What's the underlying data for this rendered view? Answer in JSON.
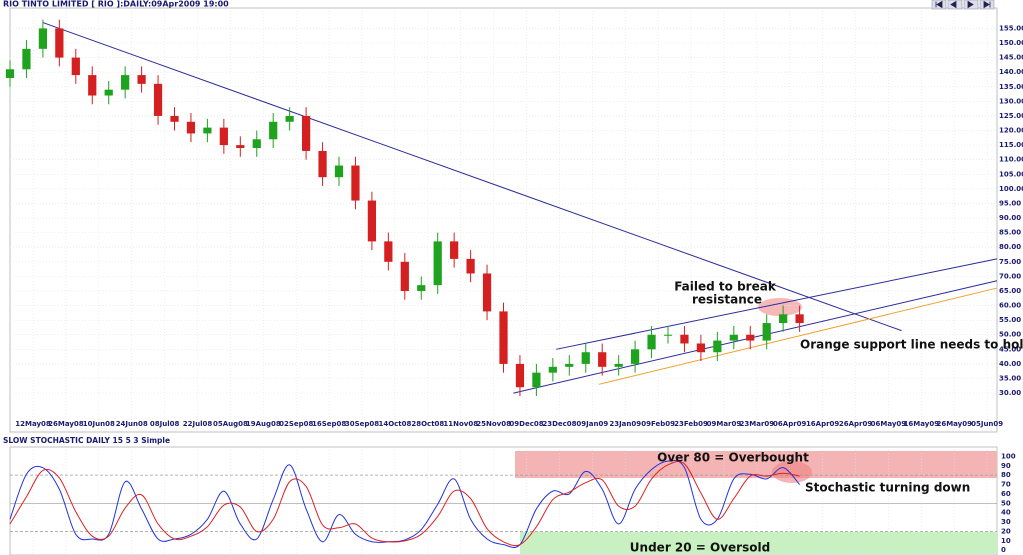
{
  "chart_data": [
    {
      "type": "candlestick",
      "title": "RIO TINTO LIMITED [ RIO ]:DAILY:09Apr2009 19:00",
      "x": [
        0,
        5,
        10,
        15,
        20,
        25,
        30,
        35,
        40,
        45,
        50,
        55,
        60,
        65,
        70,
        75,
        80,
        85,
        90,
        95,
        100,
        105,
        110,
        115,
        120,
        125,
        130,
        135,
        140,
        145,
        150,
        155,
        160,
        165,
        170,
        175,
        180,
        185,
        190,
        195,
        200,
        205,
        210,
        215,
        220,
        225,
        230,
        235,
        240
      ],
      "open": [
        138,
        141,
        148,
        155,
        145,
        139,
        132,
        134,
        139,
        136,
        125,
        123,
        119,
        121,
        115,
        114,
        117,
        123,
        125,
        113,
        104,
        108,
        96,
        82,
        75,
        65,
        67,
        82,
        76,
        71,
        58,
        40,
        32,
        37,
        39,
        40,
        44,
        39,
        40,
        45,
        50,
        50,
        47,
        44,
        48,
        50,
        48,
        54,
        57
      ],
      "high": [
        144,
        151,
        158,
        158,
        148,
        142,
        137,
        142,
        142,
        139,
        128,
        126,
        124,
        124,
        118,
        120,
        126,
        128,
        128,
        116,
        111,
        111,
        99,
        85,
        78,
        70,
        85,
        85,
        79,
        74,
        61,
        43,
        40,
        42,
        43,
        47,
        47,
        43,
        48,
        53,
        53,
        53,
        50,
        51,
        53,
        53,
        57,
        60,
        60
      ],
      "low": [
        135,
        138,
        145,
        142,
        136,
        129,
        129,
        131,
        133,
        122,
        120,
        116,
        116,
        112,
        111,
        111,
        114,
        120,
        110,
        101,
        101,
        93,
        79,
        72,
        62,
        62,
        64,
        73,
        68,
        55,
        37,
        29,
        29,
        34,
        36,
        37,
        36,
        36,
        37,
        42,
        47,
        44,
        41,
        41,
        45,
        45,
        45,
        51,
        51
      ],
      "close": [
        141,
        148,
        155,
        145,
        139,
        132,
        134,
        139,
        136,
        125,
        123,
        119,
        121,
        115,
        114,
        117,
        123,
        125,
        113,
        104,
        108,
        96,
        82,
        75,
        65,
        67,
        82,
        76,
        71,
        58,
        40,
        32,
        37,
        39,
        40,
        44,
        39,
        40,
        45,
        50,
        50,
        47,
        44,
        48,
        50,
        48,
        54,
        57,
        54
      ],
      "up_color": "#1fa31f",
      "down_color": "#d42020",
      "xlim": [
        0,
        300
      ],
      "xticks": [
        {
          "value": 7,
          "label": "12May08"
        },
        {
          "value": 17,
          "label": "26May08"
        },
        {
          "value": 27,
          "label": "10Jun08"
        },
        {
          "value": 37,
          "label": "24Jun08"
        },
        {
          "value": 47,
          "label": "08Jul08"
        },
        {
          "value": 57,
          "label": "22Jul08"
        },
        {
          "value": 67,
          "label": "05Aug08"
        },
        {
          "value": 77,
          "label": "19Aug08"
        },
        {
          "value": 87,
          "label": "02Sep08"
        },
        {
          "value": 97,
          "label": "16Sep08"
        },
        {
          "value": 107,
          "label": "30Sep08"
        },
        {
          "value": 117,
          "label": "14Oct08"
        },
        {
          "value": 127,
          "label": "28Oct08"
        },
        {
          "value": 137,
          "label": "11Nov08"
        },
        {
          "value": 147,
          "label": "25Nov08"
        },
        {
          "value": 157,
          "label": "09Dec08"
        },
        {
          "value": 167,
          "label": "23Dec08"
        },
        {
          "value": 177,
          "label": "09Jan09"
        },
        {
          "value": 187,
          "label": "23Jan09"
        },
        {
          "value": 197,
          "label": "09Feb09"
        },
        {
          "value": 207,
          "label": "23Feb09"
        },
        {
          "value": 217,
          "label": "09Mar09"
        },
        {
          "value": 227,
          "label": "23Mar09"
        },
        {
          "value": 237,
          "label": "06Apr09"
        },
        {
          "value": 247,
          "label": "16Apr09"
        },
        {
          "value": 257,
          "label": "26Apr09"
        },
        {
          "value": 267,
          "label": "06May09"
        },
        {
          "value": 277,
          "label": "16May09"
        },
        {
          "value": 287,
          "label": "26May09"
        },
        {
          "value": 297,
          "label": "05Jun09"
        }
      ],
      "ylim": [
        17,
        162
      ],
      "yticks": [
        {
          "value": 30,
          "label": "30.00"
        },
        {
          "value": 35,
          "label": "35.00"
        },
        {
          "value": 40,
          "label": "40.00"
        },
        {
          "value": 45,
          "label": "45.00"
        },
        {
          "value": 50,
          "label": "50.00"
        },
        {
          "value": 55,
          "label": "55.00"
        },
        {
          "value": 60,
          "label": "60.00"
        },
        {
          "value": 65,
          "label": "65.00"
        },
        {
          "value": 70,
          "label": "70.00"
        },
        {
          "value": 75,
          "label": "75.00"
        },
        {
          "value": 80,
          "label": "80.00"
        },
        {
          "value": 85,
          "label": "85.00"
        },
        {
          "value": 90,
          "label": "90.00"
        },
        {
          "value": 95,
          "label": "95.00"
        },
        {
          "value": 100,
          "label": "100.00"
        },
        {
          "value": 105,
          "label": "105.00"
        },
        {
          "value": 110,
          "label": "110.00"
        },
        {
          "value": 115,
          "label": "115.00"
        },
        {
          "value": 120,
          "label": "120.00"
        },
        {
          "value": 125,
          "label": "125.00"
        },
        {
          "value": 130,
          "label": "130.00"
        },
        {
          "value": 135,
          "label": "135.00"
        },
        {
          "value": 140,
          "label": "140.00"
        },
        {
          "value": 145,
          "label": "145.00"
        },
        {
          "value": 150,
          "label": "150.00"
        },
        {
          "value": 155,
          "label": "155.00"
        }
      ],
      "grid": true,
      "trendlines": [
        {
          "x": [
            10,
            271
          ],
          "y": [
            157,
            51.4
          ],
          "color": "#2a2a9a"
        },
        {
          "x": [
            166,
            300
          ],
          "y": [
            45,
            76
          ],
          "color": "#2a2a9a"
        },
        {
          "x": [
            153,
            300
          ],
          "y": [
            30,
            68.5
          ],
          "color": "#2a2a9a"
        },
        {
          "x": [
            179,
            300
          ],
          "y": [
            33,
            66
          ],
          "color": "#f0a030"
        }
      ],
      "annotations": [
        "Failed to break",
        "resistance",
        "Orange support line needs to hold"
      ]
    },
    {
      "type": "line",
      "title": "SLOW STOCHASTIC DAILY 15 5 3 Simple",
      "x": [
        0,
        5,
        10,
        15,
        20,
        25,
        30,
        35,
        40,
        45,
        50,
        55,
        60,
        65,
        70,
        75,
        80,
        85,
        90,
        95,
        100,
        105,
        110,
        115,
        120,
        125,
        130,
        135,
        140,
        145,
        150,
        155,
        160,
        165,
        170,
        175,
        180,
        185,
        190,
        195,
        200,
        205,
        210,
        215,
        220,
        225,
        230,
        235,
        240
      ],
      "series": [
        {
          "color": "#2233dd",
          "values": [
            33,
            81,
            88,
            65,
            17,
            12,
            17,
            73,
            44,
            12,
            12,
            17,
            33,
            63,
            28,
            12,
            54,
            91,
            44,
            9,
            38,
            17,
            9,
            9,
            11,
            22,
            49,
            76,
            33,
            12,
            6,
            6,
            44,
            63,
            60,
            84,
            65,
            28,
            65,
            86,
            95,
            88,
            33,
            33,
            76,
            81,
            76,
            88,
            70
          ]
        },
        {
          "color": "#dd2222",
          "values": [
            28,
            57,
            85,
            77,
            41,
            15,
            15,
            45,
            59,
            28,
            12,
            15,
            25,
            48,
            46,
            20,
            33,
            73,
            68,
            27,
            24,
            28,
            13,
            9,
            10,
            17,
            36,
            63,
            55,
            23,
            9,
            6,
            25,
            54,
            62,
            72,
            75,
            47,
            47,
            76,
            91,
            92,
            61,
            33,
            55,
            79,
            79,
            82,
            79
          ]
        }
      ],
      "xlim": [
        0,
        300
      ],
      "ylim": [
        -4,
        110
      ],
      "yticks": [
        0,
        10,
        20,
        30,
        40,
        50,
        60,
        70,
        80,
        90,
        100
      ],
      "levels": [
        20,
        50,
        80
      ],
      "annotations": [
        "Over 80 = Overbought",
        "Stochastic turning down",
        "Under 20 = Oversold"
      ]
    }
  ]
}
